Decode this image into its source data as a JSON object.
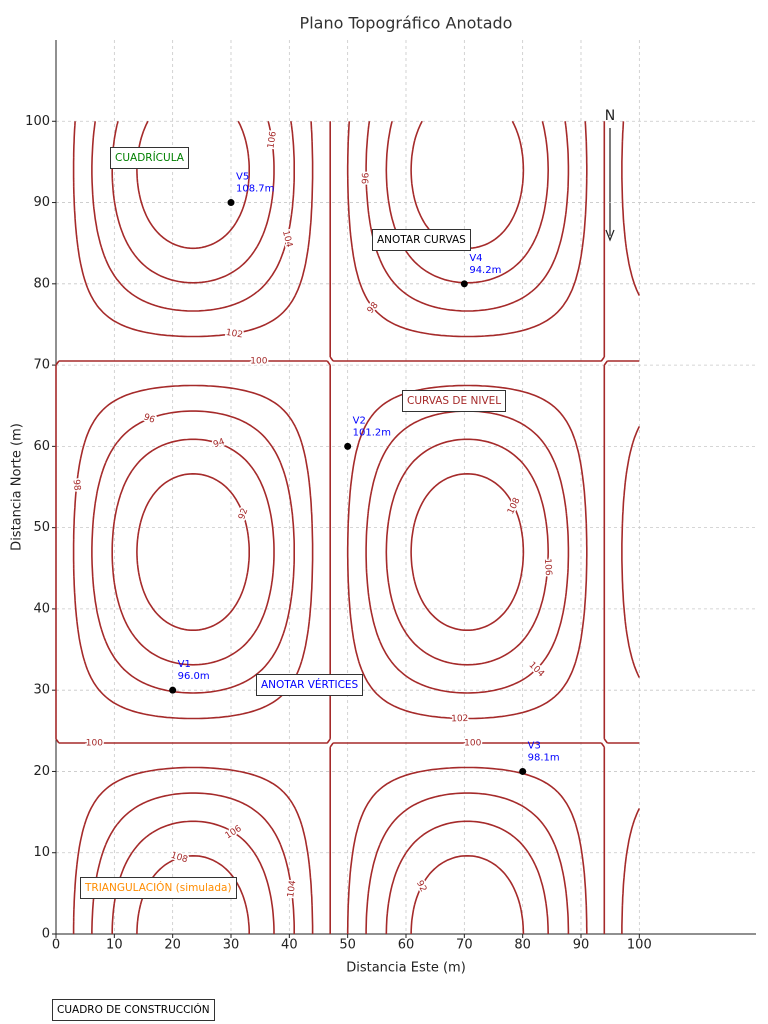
{
  "chart_data": {
    "type": "contour",
    "title": "Plano Topográfico Anotado",
    "x_label": "Distancia Este (m)",
    "y_label": "Distancia Norte (m)",
    "xlim": [
      0,
      120
    ],
    "ylim": [
      0,
      110
    ],
    "xticks": [
      0,
      10,
      20,
      30,
      40,
      50,
      60,
      70,
      80,
      90,
      100
    ],
    "yticks": [
      0,
      10,
      20,
      30,
      40,
      50,
      60,
      70,
      80,
      90,
      100
    ],
    "grid": true,
    "color": "#a52a2a",
    "levels": [
      92,
      94,
      96,
      98,
      100,
      102,
      104,
      106,
      108
    ],
    "surface": {
      "base": 100,
      "amplitude": 10,
      "period": 94,
      "extent": [
        0,
        100
      ]
    },
    "vertex_color": "#000000",
    "vertex_label_color": "#0000ff",
    "vertices": [
      {
        "name": "V1",
        "x": 20,
        "y": 30,
        "z": 96.0,
        "z_label": "96.0m"
      },
      {
        "name": "V2",
        "x": 50,
        "y": 60,
        "z": 101.2,
        "z_label": "101.2m"
      },
      {
        "name": "V3",
        "x": 80,
        "y": 20,
        "z": 98.1,
        "z_label": "98.1m"
      },
      {
        "name": "V4",
        "x": 70,
        "y": 80,
        "z": 94.2,
        "z_label": "94.2m"
      },
      {
        "name": "V5",
        "x": 30,
        "y": 90,
        "z": 108.7,
        "z_label": "108.7m"
      }
    ],
    "annotations": [
      {
        "text": "CUADRÍCULA",
        "color": "#008000"
      },
      {
        "text": "ANOTAR CURVAS",
        "color": "#000000"
      },
      {
        "text": "CURVAS DE NIVEL",
        "color": "#a52a2a"
      },
      {
        "text": "ANOTAR VÉRTICES",
        "color": "#0000ff"
      },
      {
        "text": "TRIANGULACIÓN (simulada)",
        "color": "#ff8c00"
      },
      {
        "text": "CUADRO DE CONSTRUCCIÓN",
        "color": "#000000"
      }
    ],
    "north": "N"
  }
}
